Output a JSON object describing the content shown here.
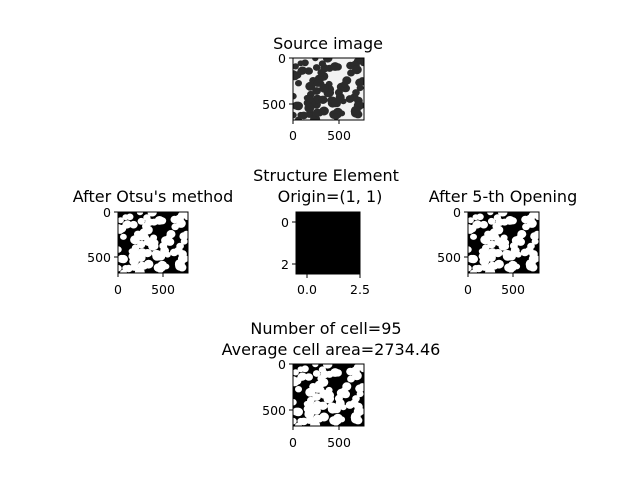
{
  "figure": {
    "panels": {
      "source": {
        "title_lines": [
          "Source image"
        ],
        "xticks": [
          "0",
          "500"
        ],
        "yticks": [
          "0",
          "500"
        ]
      },
      "otsu": {
        "title_lines": [
          "After Otsu's method"
        ],
        "xticks": [
          "0",
          "500"
        ],
        "yticks": [
          "0",
          "500"
        ]
      },
      "structure": {
        "title_lines": [
          "Structure Element",
          "Origin=(1, 1)"
        ],
        "xticks": [
          "0.0",
          "2.5"
        ],
        "yticks": [
          "0",
          "2"
        ]
      },
      "opening": {
        "title_lines": [
          "After 5-th Opening"
        ],
        "xticks": [
          "0",
          "500"
        ],
        "yticks": [
          "0",
          "500"
        ]
      },
      "result": {
        "title_lines": [
          "Number of cell=95",
          "Average cell area=2734.46"
        ],
        "xticks": [
          "0",
          "500"
        ],
        "yticks": [
          "0",
          "500"
        ]
      }
    }
  },
  "chart_data": [
    {
      "type": "image",
      "title": "Source image",
      "content": "grayscale micrograph of dark cells on light background",
      "x_range": [
        0,
        768
      ],
      "y_range": [
        0,
        700
      ],
      "y_inverted": true,
      "xticks": [
        0,
        500
      ],
      "yticks": [
        0,
        500
      ],
      "colors": {
        "foreground": "#2b2b2b",
        "background": "#f2f2f2"
      }
    },
    {
      "type": "image",
      "title": "After Otsu's method",
      "content": "binary mask: white cells on black background",
      "x_range": [
        0,
        768
      ],
      "y_range": [
        0,
        700
      ],
      "y_inverted": true,
      "xticks": [
        0,
        500
      ],
      "yticks": [
        0,
        500
      ],
      "colors": {
        "foreground": "#ffffff",
        "background": "#000000"
      }
    },
    {
      "type": "image",
      "title": "Structure Element\nOrigin=(1, 1)",
      "content": "3x3 structuring element, rendered black",
      "x_range": [
        -0.5,
        2.5
      ],
      "y_range": [
        -0.5,
        2.5
      ],
      "y_inverted": true,
      "xticks": [
        0.0,
        2.5
      ],
      "yticks": [
        0,
        2
      ],
      "values": [
        [
          1,
          1,
          1
        ],
        [
          1,
          1,
          1
        ],
        [
          1,
          1,
          1
        ]
      ],
      "colors": {
        "fill": "#000000"
      }
    },
    {
      "type": "image",
      "title": "After 5-th Opening",
      "content": "binary mask after 5 morphological openings",
      "x_range": [
        0,
        768
      ],
      "y_range": [
        0,
        700
      ],
      "y_inverted": true,
      "xticks": [
        0,
        500
      ],
      "yticks": [
        0,
        500
      ],
      "colors": {
        "foreground": "#ffffff",
        "background": "#000000"
      }
    },
    {
      "type": "image",
      "title": "Number of cell=95\nAverage cell area=2734.46",
      "content": "labelled cell mask",
      "x_range": [
        0,
        768
      ],
      "y_range": [
        0,
        700
      ],
      "y_inverted": true,
      "xticks": [
        0,
        500
      ],
      "yticks": [
        0,
        500
      ],
      "cell_count": 95,
      "average_cell_area": 2734.46,
      "colors": {
        "foreground": "#ffffff",
        "background": "#000000"
      }
    }
  ]
}
